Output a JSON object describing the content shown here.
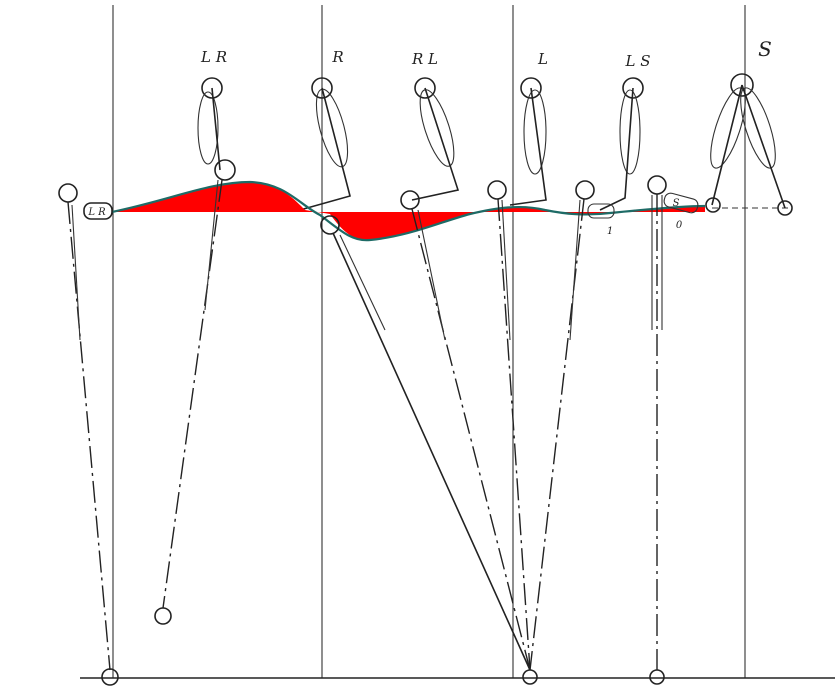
{
  "labels": [
    "L R",
    "R",
    "R L",
    "L",
    "L S",
    "S"
  ],
  "annotations": {
    "left_foot": "L R",
    "mark_one": "1",
    "mark_zero": "0",
    "right_foot": "S"
  }
}
